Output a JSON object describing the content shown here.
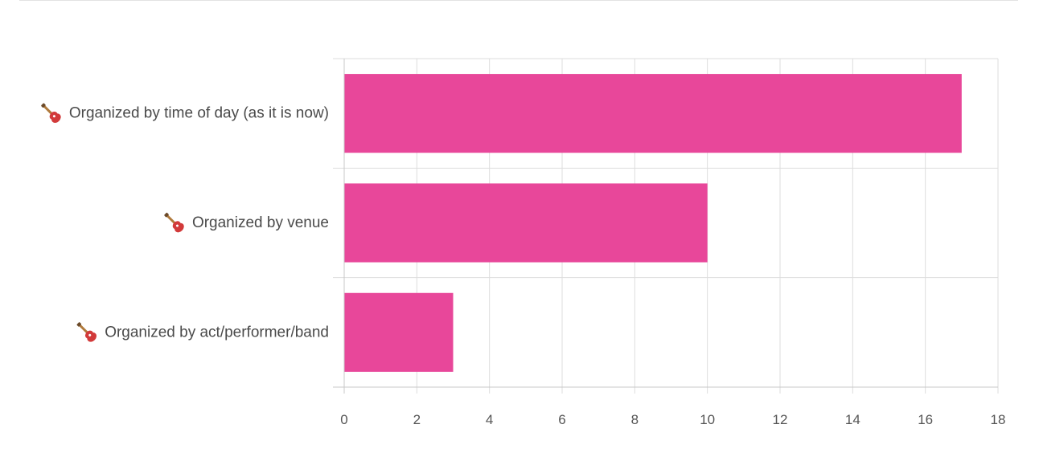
{
  "chart_data": {
    "type": "bar",
    "orientation": "horizontal",
    "categories": [
      "Organized by time of day (as it is now)",
      "Organized by venue",
      "Organized by act/performer/band"
    ],
    "category_icon": "guitar-icon",
    "values": [
      17,
      10,
      3
    ],
    "xlim": [
      0,
      18
    ],
    "x_ticks": [
      "0",
      "2",
      "4",
      "6",
      "8",
      "10",
      "12",
      "14",
      "16",
      "18"
    ],
    "bar_color": "#e8479a",
    "grid": true,
    "title": "",
    "xlabel": "",
    "ylabel": ""
  }
}
